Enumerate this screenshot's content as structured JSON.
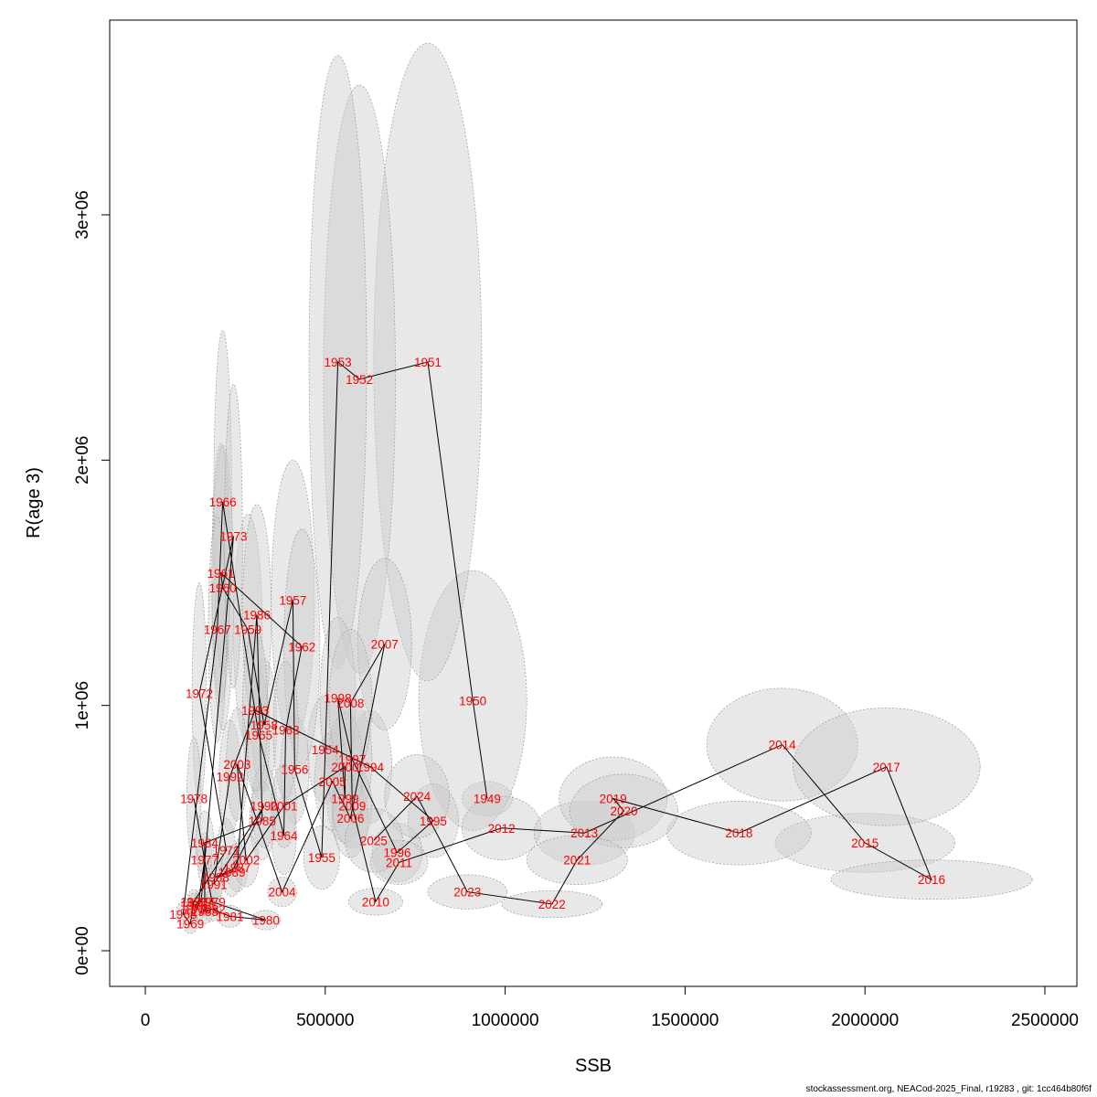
{
  "footer": "stockassessment.org, NEACod-2025_Final, r19283 , git: 1cc464b80f6f",
  "chart_data": {
    "type": "scatter",
    "title": "",
    "xlabel": "SSB",
    "ylabel": "R(age 3)",
    "xlim": [
      -100000,
      2600000
    ],
    "ylim": [
      -150000,
      3800000
    ],
    "x_ticks": [
      0,
      500000,
      1000000,
      1500000,
      2000000,
      2500000
    ],
    "x_tick_labels": [
      "0",
      "500000",
      "1000000",
      "1500000",
      "2000000",
      "2500000"
    ],
    "y_ticks": [
      0,
      1000000,
      2000000,
      3000000
    ],
    "y_tick_labels": [
      "0e+00",
      "1e+06",
      "2e+06",
      "3e+06"
    ],
    "grid": false,
    "colors": {
      "label": "#ff0000",
      "ellipse_fill": "#cccccc",
      "ellipse_stroke": "#999999",
      "line": "#000000"
    },
    "points": [
      {
        "year": "1949",
        "ssb": 950000,
        "rec": 620000,
        "sdx": 70000,
        "sdy": 70000
      },
      {
        "year": "1950",
        "ssb": 910000,
        "rec": 1020000,
        "sdx": 150000,
        "sdy": 530000
      },
      {
        "year": "1951",
        "ssb": 785000,
        "rec": 2400000,
        "sdx": 150000,
        "sdy": 1300000
      },
      {
        "year": "1952",
        "ssb": 595000,
        "rec": 2330000,
        "sdx": 100000,
        "sdy": 1200000
      },
      {
        "year": "1953",
        "ssb": 535000,
        "rec": 2400000,
        "sdx": 80000,
        "sdy": 1250000
      },
      {
        "year": "1954",
        "ssb": 500000,
        "rec": 820000,
        "sdx": 50000,
        "sdy": 220000
      },
      {
        "year": "1955",
        "ssb": 490000,
        "rec": 380000,
        "sdx": 50000,
        "sdy": 130000
      },
      {
        "year": "1956",
        "ssb": 415000,
        "rec": 740000,
        "sdx": 40000,
        "sdy": 220000
      },
      {
        "year": "1957",
        "ssb": 410000,
        "rec": 1430000,
        "sdx": 60000,
        "sdy": 570000
      },
      {
        "year": "1958",
        "ssb": 330000,
        "rec": 920000,
        "sdx": 35000,
        "sdy": 270000
      },
      {
        "year": "1959",
        "ssb": 285000,
        "rec": 1310000,
        "sdx": 40000,
        "sdy": 470000
      },
      {
        "year": "1960",
        "ssb": 215000,
        "rec": 1480000,
        "sdx": 30000,
        "sdy": 580000
      },
      {
        "year": "1961",
        "ssb": 210000,
        "rec": 1540000,
        "sdx": 25000,
        "sdy": 530000
      },
      {
        "year": "1962",
        "ssb": 435000,
        "rec": 1240000,
        "sdx": 50000,
        "sdy": 480000
      },
      {
        "year": "1963",
        "ssb": 390000,
        "rec": 900000,
        "sdx": 35000,
        "sdy": 280000
      },
      {
        "year": "1964",
        "ssb": 385000,
        "rec": 470000,
        "sdx": 35000,
        "sdy": 160000
      },
      {
        "year": "1965",
        "ssb": 315000,
        "rec": 880000,
        "sdx": 30000,
        "sdy": 260000
      },
      {
        "year": "1966",
        "ssb": 215000,
        "rec": 1830000,
        "sdx": 25000,
        "sdy": 700000
      },
      {
        "year": "1967",
        "ssb": 200000,
        "rec": 1310000,
        "sdx": 25000,
        "sdy": 460000
      },
      {
        "year": "1968",
        "ssb": 105000,
        "rec": 150000,
        "sdx": 20000,
        "sdy": 50000
      },
      {
        "year": "1969",
        "ssb": 125000,
        "rec": 110000,
        "sdx": 20000,
        "sdy": 40000
      },
      {
        "year": "1970",
        "ssb": 135000,
        "rec": 200000,
        "sdx": 20000,
        "sdy": 50000
      },
      {
        "year": "1971",
        "ssb": 225000,
        "rec": 410000,
        "sdx": 25000,
        "sdy": 130000
      },
      {
        "year": "1972",
        "ssb": 150000,
        "rec": 1050000,
        "sdx": 20000,
        "sdy": 450000
      },
      {
        "year": "1973",
        "ssb": 245000,
        "rec": 1690000,
        "sdx": 25000,
        "sdy": 620000
      },
      {
        "year": "1974",
        "ssb": 155000,
        "rec": 200000,
        "sdx": 20000,
        "sdy": 50000
      },
      {
        "year": "1975",
        "ssb": 135000,
        "rec": 185000,
        "sdx": 20000,
        "sdy": 50000
      },
      {
        "year": "1976",
        "ssb": 145000,
        "rec": 170000,
        "sdx": 20000,
        "sdy": 50000
      },
      {
        "year": "1977",
        "ssb": 165000,
        "rec": 370000,
        "sdx": 20000,
        "sdy": 110000
      },
      {
        "year": "1978",
        "ssb": 135000,
        "rec": 620000,
        "sdx": 20000,
        "sdy": 250000
      },
      {
        "year": "1979",
        "ssb": 185000,
        "rec": 200000,
        "sdx": 20000,
        "sdy": 50000
      },
      {
        "year": "1980",
        "ssb": 335000,
        "rec": 125000,
        "sdx": 40000,
        "sdy": 40000
      },
      {
        "year": "1981",
        "ssb": 235000,
        "rec": 140000,
        "sdx": 35000,
        "sdy": 45000
      },
      {
        "year": "1982",
        "ssb": 185000,
        "rec": 170000,
        "sdx": 25000,
        "sdy": 50000
      },
      {
        "year": "1983",
        "ssb": 165000,
        "rec": 160000,
        "sdx": 25000,
        "sdy": 50000
      },
      {
        "year": "1984",
        "ssb": 165000,
        "rec": 440000,
        "sdx": 25000,
        "sdy": 130000
      },
      {
        "year": "1985",
        "ssb": 325000,
        "rec": 530000,
        "sdx": 35000,
        "sdy": 160000
      },
      {
        "year": "1986",
        "ssb": 310000,
        "rec": 1370000,
        "sdx": 40000,
        "sdy": 450000
      },
      {
        "year": "1987",
        "ssb": 255000,
        "rec": 340000,
        "sdx": 30000,
        "sdy": 100000
      },
      {
        "year": "1988",
        "ssb": 195000,
        "rec": 300000,
        "sdx": 25000,
        "sdy": 90000
      },
      {
        "year": "1989",
        "ssb": 240000,
        "rec": 320000,
        "sdx": 30000,
        "sdy": 100000
      },
      {
        "year": "1990",
        "ssb": 330000,
        "rec": 590000,
        "sdx": 35000,
        "sdy": 170000
      },
      {
        "year": "1991",
        "ssb": 190000,
        "rec": 270000,
        "sdx": 25000,
        "sdy": 80000
      },
      {
        "year": "1992",
        "ssb": 235000,
        "rec": 710000,
        "sdx": 30000,
        "sdy": 230000
      },
      {
        "year": "1993",
        "ssb": 305000,
        "rec": 980000,
        "sdx": 35000,
        "sdy": 330000
      },
      {
        "year": "1994",
        "ssb": 625000,
        "rec": 750000,
        "sdx": 60000,
        "sdy": 230000
      },
      {
        "year": "1995",
        "ssb": 800000,
        "rec": 530000,
        "sdx": 70000,
        "sdy": 150000
      },
      {
        "year": "1996",
        "ssb": 700000,
        "rec": 400000,
        "sdx": 70000,
        "sdy": 120000
      },
      {
        "year": "1997",
        "ssb": 575000,
        "rec": 780000,
        "sdx": 55000,
        "sdy": 240000
      },
      {
        "year": "1998",
        "ssb": 535000,
        "rec": 1030000,
        "sdx": 50000,
        "sdy": 330000
      },
      {
        "year": "1999",
        "ssb": 555000,
        "rec": 620000,
        "sdx": 50000,
        "sdy": 180000
      },
      {
        "year": "2000",
        "ssb": 555000,
        "rec": 750000,
        "sdx": 50000,
        "sdy": 220000
      },
      {
        "year": "2001",
        "ssb": 385000,
        "rec": 590000,
        "sdx": 35000,
        "sdy": 170000
      },
      {
        "year": "2002",
        "ssb": 280000,
        "rec": 370000,
        "sdx": 35000,
        "sdy": 110000
      },
      {
        "year": "2003",
        "ssb": 255000,
        "rec": 760000,
        "sdx": 30000,
        "sdy": 230000
      },
      {
        "year": "2004",
        "ssb": 380000,
        "rec": 240000,
        "sdx": 40000,
        "sdy": 60000
      },
      {
        "year": "2005",
        "ssb": 520000,
        "rec": 690000,
        "sdx": 50000,
        "sdy": 200000
      },
      {
        "year": "2006",
        "ssb": 570000,
        "rec": 540000,
        "sdx": 50000,
        "sdy": 160000
      },
      {
        "year": "2007",
        "ssb": 665000,
        "rec": 1250000,
        "sdx": 75000,
        "sdy": 350000
      },
      {
        "year": "2008",
        "ssb": 570000,
        "rec": 1010000,
        "sdx": 60000,
        "sdy": 300000
      },
      {
        "year": "2009",
        "ssb": 575000,
        "rec": 590000,
        "sdx": 55000,
        "sdy": 170000
      },
      {
        "year": "2010",
        "ssb": 640000,
        "rec": 200000,
        "sdx": 75000,
        "sdy": 55000
      },
      {
        "year": "2011",
        "ssb": 705000,
        "rec": 360000,
        "sdx": 80000,
        "sdy": 90000
      },
      {
        "year": "2012",
        "ssb": 990000,
        "rec": 500000,
        "sdx": 110000,
        "sdy": 130000
      },
      {
        "year": "2013",
        "ssb": 1220000,
        "rec": 480000,
        "sdx": 140000,
        "sdy": 130000
      },
      {
        "year": "2014",
        "ssb": 1770000,
        "rec": 840000,
        "sdx": 210000,
        "sdy": 230000
      },
      {
        "year": "2015",
        "ssb": 2000000,
        "rec": 440000,
        "sdx": 250000,
        "sdy": 120000
      },
      {
        "year": "2016",
        "ssb": 2185000,
        "rec": 290000,
        "sdx": 280000,
        "sdy": 80000
      },
      {
        "year": "2017",
        "ssb": 2060000,
        "rec": 750000,
        "sdx": 260000,
        "sdy": 240000
      },
      {
        "year": "2018",
        "ssb": 1650000,
        "rec": 480000,
        "sdx": 200000,
        "sdy": 130000
      },
      {
        "year": "2019",
        "ssb": 1300000,
        "rec": 620000,
        "sdx": 150000,
        "sdy": 170000
      },
      {
        "year": "2020",
        "ssb": 1330000,
        "rec": 570000,
        "sdx": 150000,
        "sdy": 150000
      },
      {
        "year": "2021",
        "ssb": 1200000,
        "rec": 370000,
        "sdx": 140000,
        "sdy": 100000
      },
      {
        "year": "2022",
        "ssb": 1130000,
        "rec": 190000,
        "sdx": 140000,
        "sdy": 55000
      },
      {
        "year": "2023",
        "ssb": 895000,
        "rec": 240000,
        "sdx": 110000,
        "sdy": 70000
      },
      {
        "year": "2024",
        "ssb": 755000,
        "rec": 630000,
        "sdx": 90000,
        "sdy": 170000
      },
      {
        "year": "2025",
        "ssb": 635000,
        "rec": 450000,
        "sdx": 80000,
        "sdy": 130000
      }
    ]
  }
}
